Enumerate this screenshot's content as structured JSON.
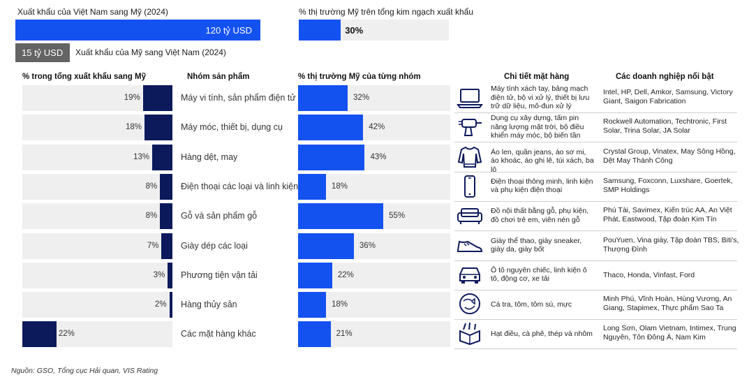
{
  "top": {
    "vn_export_title": "Xuất khẩu của Việt Nam sang Mỹ (2024)",
    "vn_export_value": "120 tỷ USD",
    "us_export_value": "15 tỷ USD",
    "us_export_title": "Xuất khẩu của Mỹ sang Việt Nam (2024)",
    "share_title": "% thị trường Mỹ trên tổng kim ngạch xuất khẩu",
    "share_value": "30%",
    "share_fraction": 0.3
  },
  "headers": {
    "left": "% trong tổng xuất khẩu sang Mỹ",
    "group": "Nhóm sản phẩm",
    "right": "% thị trường Mỹ của từng nhóm",
    "detail": "Chi tiết mặt hàng",
    "firms": "Các doanh nghiệp nổi bật"
  },
  "colors": {
    "navy": "#0c1a5c",
    "blue": "#1452f0",
    "bg": "#efefef"
  },
  "chart_data": {
    "type": "bar",
    "categories": [
      "Máy vi tính, sản phẩm điện tử",
      "Máy móc, thiết bị, dụng cụ",
      "Hàng dệt, may",
      "Điện thoại các loại và linh kiện",
      "Gỗ và sản phẩm gỗ",
      "Giày dép các loại",
      "Phương tiện vận tải",
      "Hàng thủy sản",
      "Các mặt hàng khác"
    ],
    "series": [
      {
        "name": "% trong tổng xuất khẩu sang Mỹ",
        "values": [
          19,
          18,
          13,
          8,
          8,
          7,
          3,
          2,
          22
        ]
      },
      {
        "name": "% thị trường Mỹ của từng nhóm",
        "values": [
          32,
          42,
          43,
          18,
          55,
          36,
          22,
          18,
          21
        ]
      }
    ],
    "left_labels": [
      "19%",
      "18%",
      "13%",
      "8%",
      "8%",
      "7%",
      "3%",
      "2%",
      "22%"
    ],
    "right_labels": [
      "32%",
      "42%",
      "43%",
      "18%",
      "55%",
      "36%",
      "22%",
      "18%",
      "21%"
    ]
  },
  "rows": [
    {
      "icon": "laptop-icon",
      "detail": "Máy tính xách tay, bảng mạch điện tử, bộ vi xử lý, thiết bị lưu trữ dữ liệu, mô-đun xử lý",
      "firms": "Intel, HP, Dell, Amkor, Samsung, Victory Giant, Saigon Fabrication"
    },
    {
      "icon": "drill-icon",
      "detail": "Dụng cụ xây dựng, tấm pin năng lượng mặt trời, bộ điều khiển máy móc, bộ biến tần",
      "firms": "Rockwell Automation, Techtronic, First Solar, Trina Solar, JA Solar"
    },
    {
      "icon": "sweater-icon",
      "detail": "Áo len, quần jeans, áo sơ mi, áo khoác, áo ghi lê, túi xách, ba lô",
      "firms": "Crystal Group, Vinatex, May Sông Hồng, Dệt May Thành Công"
    },
    {
      "icon": "phone-icon",
      "detail": "Điện thoại thông minh, linh kiện và phụ kiện điện thoại",
      "firms": "Samsung, Foxconn, Luxshare, Goertek, SMP Holdings"
    },
    {
      "icon": "sofa-icon",
      "detail": "Đồ nội thất bằng gỗ, phụ kiện, đồ chơi trẻ em, viên nén gỗ",
      "firms": "Phú Tài, Savimex, Kiến trúc AA, An Việt Phát, Eastwood, Tập đoàn Kim Tín"
    },
    {
      "icon": "sneaker-icon",
      "detail": "Giày thể thao, giày sneaker, giày da, giày bốt",
      "firms": "PouYuen, Vina giày, Tập đoàn TBS, Biti's, Thượng Đình"
    },
    {
      "icon": "car-icon",
      "detail": "Ô tô nguyên chiếc, linh kiện ô tô, động cơ, xe tải",
      "firms": "Thaco, Honda, Vinfast, Ford"
    },
    {
      "icon": "seafood-icon",
      "detail": "Cá tra, tôm, tôm sú, mực",
      "firms": "Minh Phú, Vĩnh Hoàn, Hùng Vương, An Giang, Stapimex, Thực phẩm Sao Ta"
    },
    {
      "icon": "box-icon",
      "detail": "Hạt điều, cà phê, thép và nhôm",
      "firms": "Long Sơn, Olam Vietnam, Intimex, Trung Nguyên, Tôn Đông Á, Nam Kim"
    }
  ],
  "source": "Nguồn: GSO, Tổng cục Hải quan, VIS Rating"
}
